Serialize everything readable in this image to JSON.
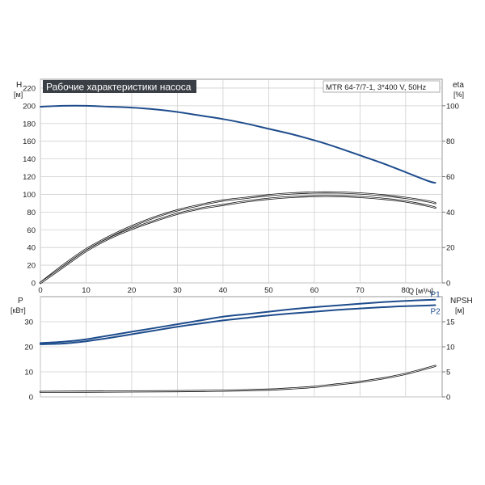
{
  "chart_data": [
    {
      "type": "line",
      "title": "Рабочие характеристики насоса",
      "model_label": "MTR 64-7/7-1, 3*400 V, 50Hz",
      "xlabel": "Q [м³/ч]",
      "ylabel_left": "H",
      "ylabel_left_unit": "[м]",
      "ylabel_right": "eta",
      "ylabel_right_unit": "[%]",
      "xlim": [
        0,
        88
      ],
      "ylim_left": [
        0,
        230
      ],
      "ylim_right": [
        0,
        115
      ],
      "x_ticks": [
        0,
        10,
        20,
        30,
        40,
        50,
        60,
        70,
        80
      ],
      "y_left_ticks": [
        0,
        20,
        40,
        60,
        80,
        100,
        120,
        140,
        160,
        180,
        200,
        220
      ],
      "y_right_ticks": [
        0,
        20,
        40,
        60,
        80,
        100
      ],
      "grid": true,
      "series": [
        {
          "color": "#1e4c8c",
          "axis": "left",
          "x": [
            0,
            5,
            10,
            15,
            20,
            25,
            30,
            35,
            40,
            45,
            50,
            55,
            60,
            65,
            70,
            75,
            80,
            85,
            86.5
          ],
          "y": [
            199,
            200,
            200,
            199,
            198,
            196,
            193,
            189,
            185,
            180,
            174,
            168,
            161,
            153,
            144,
            135,
            125,
            115,
            113
          ]
        },
        {
          "color": "#111111",
          "axis": "right",
          "x": [
            0,
            5,
            10,
            15,
            20,
            25,
            30,
            35,
            40,
            45,
            50,
            55,
            60,
            65,
            70,
            75,
            80,
            85,
            86.5
          ],
          "y": [
            0,
            10,
            19,
            26,
            32,
            37,
            41,
            44,
            46.5,
            48,
            49.5,
            50.5,
            51,
            51,
            50.5,
            49.5,
            48,
            46,
            45
          ]
        },
        {
          "color": "#111111",
          "axis": "right",
          "x": [
            0,
            5,
            10,
            15,
            20,
            25,
            30,
            35,
            40,
            45,
            50,
            55,
            60,
            65,
            70,
            75,
            80,
            85,
            86.5
          ],
          "y": [
            0,
            9,
            18,
            25,
            30.5,
            35,
            39,
            42,
            44,
            46,
            47.5,
            48.5,
            49,
            49,
            48.5,
            47.5,
            46,
            43.5,
            42.5
          ]
        }
      ]
    },
    {
      "type": "line",
      "ylabel_left": "P",
      "ylabel_left_unit": "[кВт]",
      "ylabel_right": "NPSH",
      "ylabel_right_unit": "[м]",
      "xlim": [
        0,
        88
      ],
      "ylim_left": [
        0,
        40
      ],
      "ylim_right": [
        0,
        20
      ],
      "x_ticks": [
        0,
        10,
        20,
        30,
        40,
        50,
        60,
        70,
        80
      ],
      "y_left_ticks": [
        0,
        10,
        20,
        30
      ],
      "y_right_ticks": [
        0,
        5,
        10,
        15
      ],
      "grid": true,
      "series": [
        {
          "name": "P1",
          "color": "#1e4c8c",
          "axis": "left",
          "x": [
            0,
            5,
            10,
            15,
            20,
            25,
            30,
            35,
            40,
            45,
            50,
            55,
            60,
            65,
            70,
            75,
            80,
            85,
            86.5
          ],
          "y": [
            21.5,
            22,
            23,
            24.5,
            26,
            27.5,
            29,
            30.5,
            32,
            33,
            34,
            35,
            35.8,
            36.5,
            37.2,
            37.8,
            38.3,
            38.7,
            38.8
          ]
        },
        {
          "name": "P2",
          "color": "#1e4c8c",
          "axis": "left",
          "x": [
            0,
            5,
            10,
            15,
            20,
            25,
            30,
            35,
            40,
            45,
            50,
            55,
            60,
            65,
            70,
            75,
            80,
            85,
            86.5
          ],
          "y": [
            21,
            21.3,
            22.2,
            23.5,
            25,
            26.5,
            28,
            29.3,
            30.5,
            31.5,
            32.5,
            33.3,
            34,
            34.7,
            35.3,
            35.8,
            36.2,
            36.5,
            36.6
          ]
        },
        {
          "color": "#111111",
          "axis": "right",
          "x": [
            0,
            10,
            20,
            30,
            40,
            50,
            55,
            60,
            65,
            70,
            75,
            80,
            85,
            86.5
          ],
          "y": [
            1.0,
            1.05,
            1.1,
            1.15,
            1.25,
            1.45,
            1.7,
            2.0,
            2.5,
            3.0,
            3.7,
            4.6,
            5.8,
            6.2
          ]
        }
      ]
    }
  ]
}
